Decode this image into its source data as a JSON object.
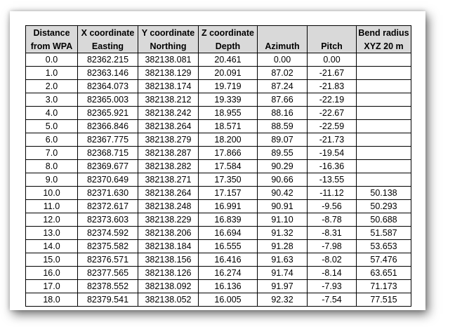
{
  "headers": {
    "top": [
      "Distance",
      "X coordinate",
      "Y coordinate",
      "Z coordinate",
      "",
      "",
      "Bend radius"
    ],
    "bottom": [
      "from WPA",
      "Easting",
      "Northing",
      "Depth",
      "Azimuth",
      "Pitch",
      "XYZ 20 m"
    ]
  },
  "rows": [
    [
      "0.0",
      "82362.215",
      "382138.081",
      "20.461",
      "0.00",
      "0.00",
      ""
    ],
    [
      "1.0",
      "82363.146",
      "382138.129",
      "20.091",
      "87.02",
      "-21.67",
      ""
    ],
    [
      "2.0",
      "82364.073",
      "382138.174",
      "19.719",
      "87.24",
      "-21.83",
      ""
    ],
    [
      "3.0",
      "82365.003",
      "382138.212",
      "19.339",
      "87.66",
      "-22.19",
      ""
    ],
    [
      "4.0",
      "82365.921",
      "382138.242",
      "18.955",
      "88.16",
      "-22.67",
      ""
    ],
    [
      "5.0",
      "82366.846",
      "382138.264",
      "18.571",
      "88.59",
      "-22.59",
      ""
    ],
    [
      "6.0",
      "82367.775",
      "382138.279",
      "18.200",
      "89.07",
      "-21.73",
      ""
    ],
    [
      "7.0",
      "82368.715",
      "382138.287",
      "17.866",
      "89.55",
      "-19.54",
      ""
    ],
    [
      "8.0",
      "82369.677",
      "382138.282",
      "17.584",
      "90.29",
      "-16.36",
      ""
    ],
    [
      "9.0",
      "82370.649",
      "382138.271",
      "17.350",
      "90.66",
      "-13.55",
      ""
    ],
    [
      "10.0",
      "82371.630",
      "382138.264",
      "17.157",
      "90.42",
      "-11.12",
      "50.138"
    ],
    [
      "11.0",
      "82372.617",
      "382138.248",
      "16.991",
      "90.91",
      "-9.56",
      "50.293"
    ],
    [
      "12.0",
      "82373.603",
      "382138.229",
      "16.839",
      "91.10",
      "-8.78",
      "50.688"
    ],
    [
      "13.0",
      "82374.592",
      "382138.206",
      "16.694",
      "91.32",
      "-8.31",
      "51.587"
    ],
    [
      "14.0",
      "82375.582",
      "382138.184",
      "16.555",
      "91.28",
      "-7.98",
      "53.653"
    ],
    [
      "15.0",
      "82376.571",
      "382138.156",
      "16.416",
      "91.63",
      "-8.02",
      "57.476"
    ],
    [
      "16.0",
      "82377.565",
      "382138.126",
      "16.274",
      "91.74",
      "-8.14",
      "63.651"
    ],
    [
      "17.0",
      "82378.552",
      "382138.092",
      "16.136",
      "91.97",
      "-7.93",
      "71.173"
    ],
    [
      "18.0",
      "82379.541",
      "382138.052",
      "16.005",
      "92.32",
      "-7.54",
      "77.515"
    ]
  ]
}
